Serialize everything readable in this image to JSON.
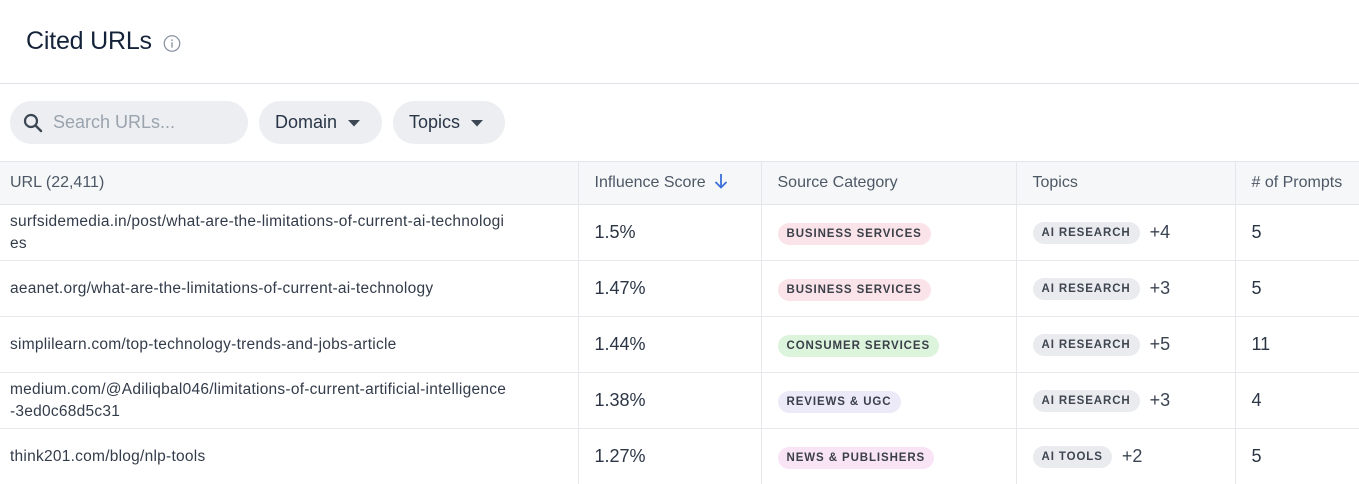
{
  "header": {
    "title": "Cited URLs",
    "info_icon": "info-circle-icon"
  },
  "filters": {
    "search_placeholder": "Search URLs...",
    "search_value": "",
    "domain_label": "Domain",
    "topics_label": "Topics"
  },
  "table": {
    "columns": {
      "url": "URL (22,411)",
      "influence": "Influence Score",
      "category": "Source Category",
      "topics": "Topics",
      "prompts": "# of Prompts"
    },
    "sort": {
      "column": "influence",
      "direction": "descending",
      "icon": "arrow-down-icon"
    },
    "rows": [
      {
        "url": "surfsidemedia.in/post/what-are-the-limitations-of-current-ai-technologies",
        "influence": "1.5%",
        "category": "BUSINESS SERVICES",
        "category_bg": "#fbe3ea",
        "topic": "AI RESEARCH",
        "topic_more": "+4",
        "prompts": "5"
      },
      {
        "url": "aeanet.org/what-are-the-limitations-of-current-ai-technology",
        "influence": "1.47%",
        "category": "BUSINESS SERVICES",
        "category_bg": "#fbe3ea",
        "topic": "AI RESEARCH",
        "topic_more": "+3",
        "prompts": "5"
      },
      {
        "url": "simplilearn.com/top-technology-trends-and-jobs-article",
        "influence": "1.44%",
        "category": "CONSUMER SERVICES",
        "category_bg": "#dcf3dc",
        "topic": "AI RESEARCH",
        "topic_more": "+5",
        "prompts": "11"
      },
      {
        "url": "medium.com/@Adiliqbal046/limitations-of-current-artificial-intelligence-3ed0c68d5c31",
        "influence": "1.38%",
        "category": "REVIEWS & UGC",
        "category_bg": "#eceaf8",
        "topic": "AI RESEARCH",
        "topic_more": "+3",
        "prompts": "4"
      },
      {
        "url": "think201.com/blog/nlp-tools",
        "influence": "1.27%",
        "category": "NEWS & PUBLISHERS",
        "category_bg": "#f9e4f5",
        "topic": "AI TOOLS",
        "topic_more": "+2",
        "prompts": "5"
      }
    ]
  }
}
